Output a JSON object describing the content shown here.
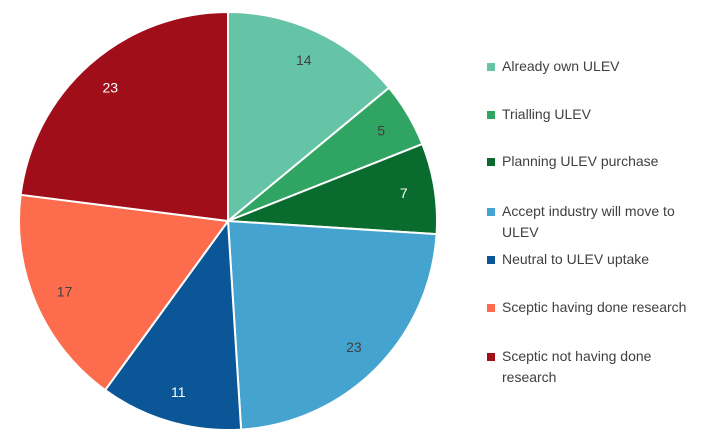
{
  "chart_data": {
    "type": "pie",
    "title": "",
    "categories": [
      "Already own ULEV",
      "Trialling ULEV",
      "Planning ULEV purchase",
      "Accept industry will move to ULEV",
      "Neutral to ULEV uptake",
      "Sceptic having done research",
      "Sceptic not having done research"
    ],
    "values": [
      14,
      5,
      7,
      23,
      11,
      17,
      23
    ],
    "colors": [
      "#66c4a6",
      "#30a462",
      "#0a6b2f",
      "#44a3cf",
      "#0b5696",
      "#fd6c4d",
      "#a00f19"
    ],
    "label_colors": [
      "#404040",
      "#404040",
      "#ffffff",
      "#404040",
      "#ffffff",
      "#404040",
      "#ffffff"
    ],
    "legend_position": "right"
  }
}
